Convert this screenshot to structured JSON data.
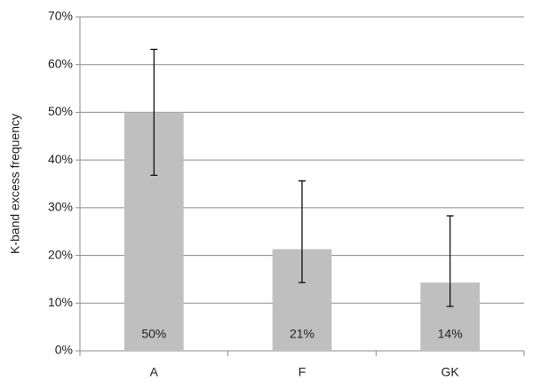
{
  "chart_data": {
    "type": "bar",
    "y_label": "K-band excess frequency",
    "categories": [
      "A",
      "F",
      "GK"
    ],
    "values": [
      50,
      21.3,
      14.3
    ],
    "value_labels": [
      "50%",
      "21%",
      "14%"
    ],
    "errors_plus": [
      13.2,
      14.3,
      14.0
    ],
    "errors_minus": [
      13.2,
      7.0,
      5.0
    ],
    "color": "#bfbfbf",
    "ylim": [
      0,
      70
    ],
    "yticks": [
      {
        "value": 0,
        "label": "0%"
      },
      {
        "value": 10,
        "label": "10%"
      },
      {
        "value": 20,
        "label": "20%"
      },
      {
        "value": 30,
        "label": "30%"
      },
      {
        "value": 40,
        "label": "40%"
      },
      {
        "value": 50,
        "label": "50%"
      },
      {
        "value": 60,
        "label": "60%"
      },
      {
        "value": 70,
        "label": "70%"
      }
    ],
    "grid": true
  }
}
